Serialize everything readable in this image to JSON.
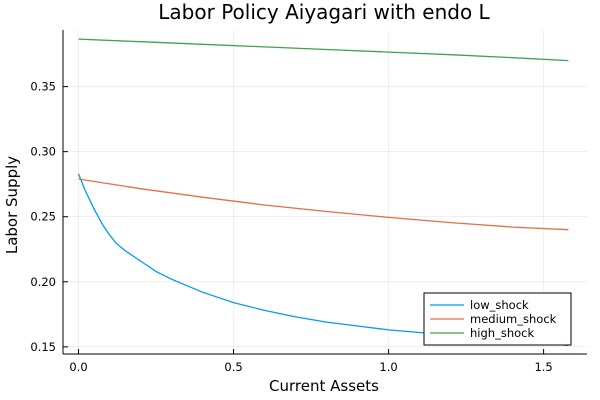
{
  "chart_data": {
    "type": "line",
    "title": "Labor Policy Aiyagari with endo L",
    "xlabel": "Current Assets",
    "ylabel": "Labor Supply",
    "xlim": [
      -0.05,
      1.64
    ],
    "ylim": [
      0.1445,
      0.3935
    ],
    "xticks": [
      0.0,
      0.5,
      1.0,
      1.5
    ],
    "xtick_labels": [
      "0.0",
      "0.5",
      "1.0",
      "1.5"
    ],
    "yticks": [
      0.15,
      0.2,
      0.25,
      0.3,
      0.35
    ],
    "ytick_labels": [
      "0.15",
      "0.20",
      "0.25",
      "0.30",
      "0.35"
    ],
    "grid": true,
    "legend_position": "bottom-right",
    "series": [
      {
        "name": "low_shock",
        "color": "#009af9",
        "x": [
          0.0,
          0.02,
          0.05,
          0.08,
          0.1,
          0.12,
          0.15,
          0.2,
          0.25,
          0.3,
          0.4,
          0.5,
          0.6,
          0.7,
          0.8,
          0.9,
          1.0,
          1.1,
          1.2,
          1.3,
          1.4,
          1.5,
          1.58
        ],
        "y": [
          0.283,
          0.271,
          0.256,
          0.243,
          0.236,
          0.23,
          0.224,
          0.216,
          0.208,
          0.202,
          0.192,
          0.184,
          0.178,
          0.173,
          0.169,
          0.166,
          0.163,
          0.161,
          0.159,
          0.157,
          0.155,
          0.153,
          0.151
        ]
      },
      {
        "name": "medium_shock",
        "color": "#e26f46",
        "x": [
          0.0,
          0.2,
          0.4,
          0.6,
          0.8,
          1.0,
          1.2,
          1.4,
          1.58
        ],
        "y": [
          0.279,
          0.2715,
          0.265,
          0.259,
          0.254,
          0.2495,
          0.2455,
          0.242,
          0.24
        ]
      },
      {
        "name": "high_shock",
        "color": "#3da44d",
        "x": [
          0.0,
          0.2,
          0.4,
          0.6,
          0.8,
          1.0,
          1.2,
          1.4,
          1.58
        ],
        "y": [
          0.3865,
          0.3845,
          0.3825,
          0.3805,
          0.3785,
          0.3765,
          0.3745,
          0.3722,
          0.37
        ]
      }
    ]
  }
}
